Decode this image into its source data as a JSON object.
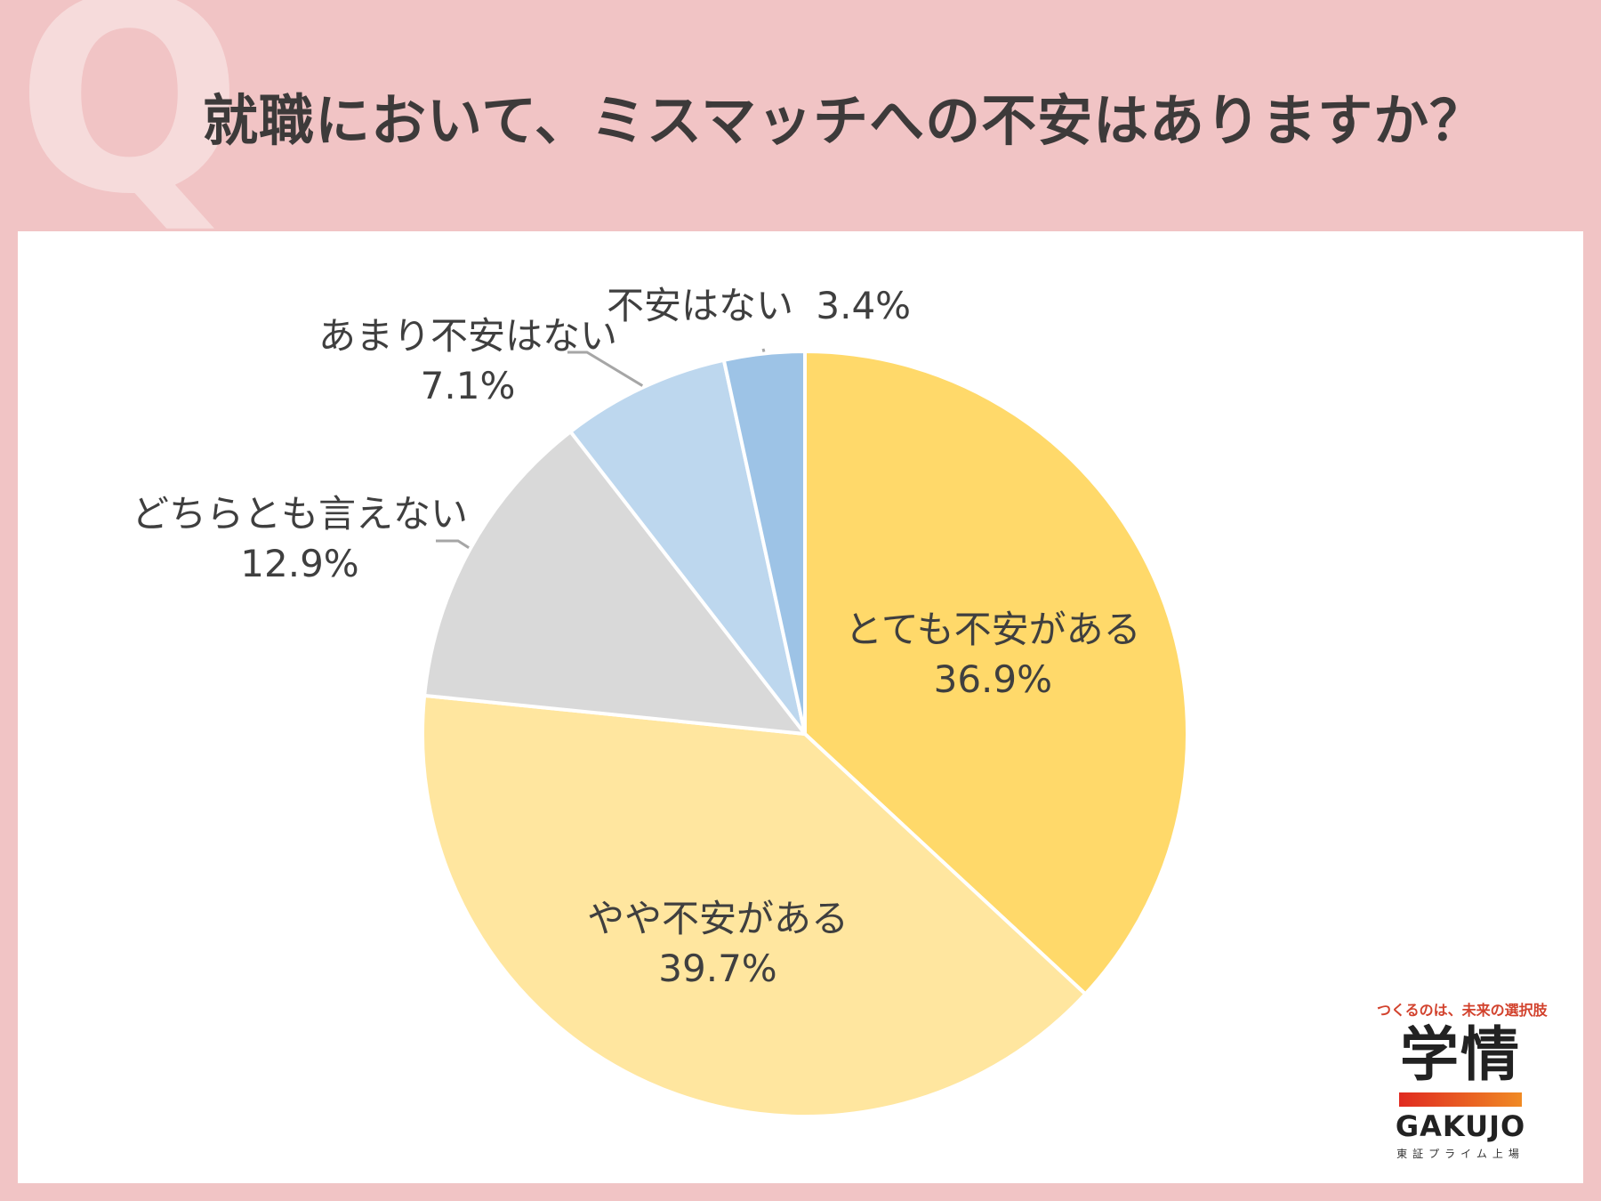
{
  "header": {
    "q_mark": "Q",
    "title": "就職において、ミスマッチへの不安はありますか？"
  },
  "chart_data": {
    "type": "pie",
    "title": "就職において、ミスマッチへの不安はありますか？",
    "unit": "%",
    "start_angle_deg": 0,
    "direction": "clockwise",
    "slices": [
      {
        "label": "とても不安がある",
        "value": 36.9,
        "value_text": "36.9%",
        "color": "#ffd96a"
      },
      {
        "label": "やや不安がある",
        "value": 39.7,
        "value_text": "39.7%",
        "color": "#ffe69f"
      },
      {
        "label": "どちらとも言えない",
        "value": 12.9,
        "value_text": "12.9%",
        "color": "#d9d9d9"
      },
      {
        "label": "あまり不安はない",
        "value": 7.1,
        "value_text": "7.1%",
        "color": "#bdd7ee"
      },
      {
        "label": "不安はない",
        "value": 3.4,
        "value_text": "3.4%",
        "color": "#9dc3e6"
      }
    ]
  },
  "brand": {
    "tagline": "つくるのは、未来の選択肢",
    "name_kanji": "学情",
    "name_latin": "GAKUJO",
    "listing": "東証プライム上場"
  }
}
